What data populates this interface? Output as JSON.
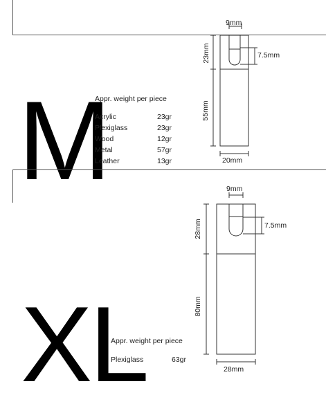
{
  "sections": {
    "m": {
      "size_letter": "M",
      "weight_title": "Appr. weight per piece",
      "weights": [
        {
          "material": "Acrylic",
          "weight": "23gr"
        },
        {
          "material": "Plexiglass",
          "weight": "23gr"
        },
        {
          "material": "Wood",
          "weight": "12gr"
        },
        {
          "material": "Metal",
          "weight": "57gr"
        },
        {
          "material": "Leather",
          "weight": "13gr"
        }
      ],
      "dims": {
        "slot_width": "9mm",
        "slot_height": "7.5mm",
        "top_height": "23mm",
        "bottom_height": "55mm",
        "total_width": "20mm"
      }
    },
    "xl": {
      "size_letter": "XL",
      "weight_title": "Appr. weight per piece",
      "weights": [
        {
          "material": "Plexiglass",
          "weight": "63gr"
        }
      ],
      "dims": {
        "slot_width": "9mm",
        "slot_height": "7.5mm",
        "top_height": "28mm",
        "bottom_height": "80mm",
        "total_width": "28mm"
      }
    }
  }
}
